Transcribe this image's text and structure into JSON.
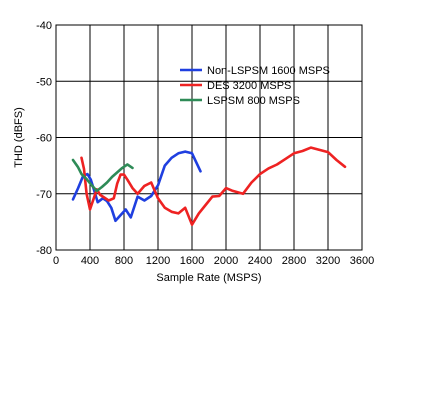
{
  "chart_data": {
    "type": "line",
    "title": "",
    "xlabel": "Sample Rate (MSPS)",
    "ylabel": "THD (dBFS)",
    "xlim": [
      0,
      3600
    ],
    "ylim": [
      -80,
      -40
    ],
    "xticks": [
      0,
      400,
      800,
      1200,
      1600,
      2000,
      2400,
      2800,
      3200,
      3600
    ],
    "yticks": [
      -80,
      -70,
      -60,
      -50,
      -40
    ],
    "xtick_labels": [
      "0",
      "400",
      "800",
      "1200",
      "1600",
      "2000",
      "2400",
      "2800",
      "3200",
      "3600"
    ],
    "ytick_labels": [
      "-80",
      "-70",
      "-60",
      "-50",
      "-40"
    ],
    "grid": true,
    "legend_position": "top-right",
    "series": [
      {
        "name": "Non-LSPSM 1600 MSPS",
        "color": "#1f3fe0",
        "x": [
          200,
          260,
          320,
          370,
          410,
          450,
          490,
          550,
          600,
          650,
          700,
          760,
          820,
          880,
          960,
          1040,
          1120,
          1200,
          1280,
          1360,
          1440,
          1520,
          1600,
          1700
        ],
        "y": [
          -71,
          -69,
          -66.8,
          -66.5,
          -67.5,
          -69.5,
          -71.5,
          -70.8,
          -71.3,
          -72.5,
          -74.8,
          -73.8,
          -72.8,
          -74.2,
          -70.5,
          -71.2,
          -70.4,
          -68.5,
          -65,
          -63.6,
          -62.8,
          -62.5,
          -62.8,
          -66
        ]
      },
      {
        "name": "DES 3200 MSPS",
        "color": "#ee2222",
        "x": [
          300,
          330,
          360,
          400,
          440,
          480,
          520,
          560,
          620,
          680,
          720,
          760,
          800,
          840,
          900,
          960,
          1040,
          1120,
          1200,
          1280,
          1360,
          1440,
          1520,
          1600,
          1680,
          1760,
          1840,
          1920,
          2000,
          2080,
          2200,
          2300,
          2400,
          2500,
          2600,
          2700,
          2800,
          2900,
          3000,
          3100,
          3200,
          3300,
          3400
        ],
        "y": [
          -63.6,
          -65.6,
          -70,
          -72.8,
          -71,
          -69.2,
          -70.2,
          -70.6,
          -71.2,
          -70.8,
          -68.2,
          -66.6,
          -66.6,
          -67.5,
          -69,
          -70,
          -68.6,
          -68,
          -70.8,
          -72.5,
          -73.2,
          -73.5,
          -72.5,
          -75.5,
          -73.5,
          -72,
          -70.5,
          -70.4,
          -69,
          -69.5,
          -70,
          -68,
          -66.5,
          -65.5,
          -64.8,
          -63.8,
          -62.8,
          -62.4,
          -61.8,
          -62.2,
          -62.6,
          -64,
          -65.2
        ]
      },
      {
        "name": "LSPSM 800 MSPS",
        "color": "#2e8b57",
        "x": [
          200,
          260,
          300,
          360,
          420,
          480,
          540,
          600,
          660,
          720,
          780,
          840,
          900
        ],
        "y": [
          -64,
          -65.3,
          -66.5,
          -67.4,
          -68.5,
          -69.5,
          -68.8,
          -68,
          -67,
          -66.2,
          -65.4,
          -64.8,
          -65.4
        ]
      }
    ]
  }
}
